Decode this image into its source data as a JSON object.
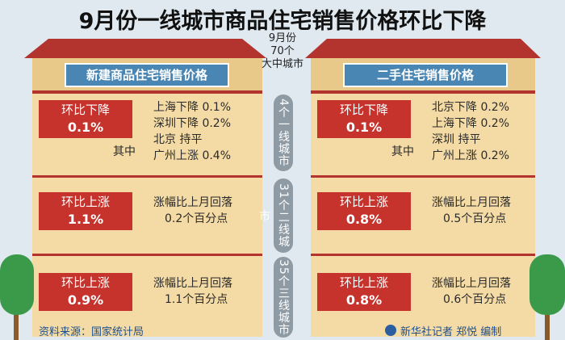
{
  "title": "9月份一线城市商品住宅销售价格环比下降",
  "center": [
    "9月份",
    "70个",
    "大中城市"
  ],
  "tiers": [
    "4个一线城市",
    "31个二线城市",
    "35个三线城市"
  ],
  "houses": [
    {
      "title": "新建商品住宅销售价格",
      "rows": [
        {
          "badge": "环比下降",
          "value": "0.1%",
          "note": "其中",
          "details": [
            "上海下降 0.1%",
            "深圳下降 0.2%",
            "北京 持平",
            "广州上涨 0.4%"
          ]
        },
        {
          "badge": "环比上涨",
          "value": "1.1%",
          "details": [
            "涨幅比上月回落",
            "0.2个百分点"
          ]
        },
        {
          "badge": "环比上涨",
          "value": "0.9%",
          "details": [
            "涨幅比上月回落",
            "1.1个百分点"
          ]
        }
      ]
    },
    {
      "title": "二手住宅销售价格",
      "rows": [
        {
          "badge": "环比下降",
          "value": "0.1%",
          "note": "其中",
          "details": [
            "北京下降 0.2%",
            "上海下降 0.2%",
            "深圳 持平",
            "广州上涨 0.2%"
          ]
        },
        {
          "badge": "环比上涨",
          "value": "0.8%",
          "details": [
            "涨幅比上月回落",
            "0.5个百分点"
          ]
        },
        {
          "badge": "环比上涨",
          "value": "0.8%",
          "details": [
            "涨幅比上月回落",
            "0.6个百分点"
          ]
        }
      ]
    }
  ],
  "source": "资料来源：国家统计局",
  "credit": "新华社记者 郑悦 编制"
}
